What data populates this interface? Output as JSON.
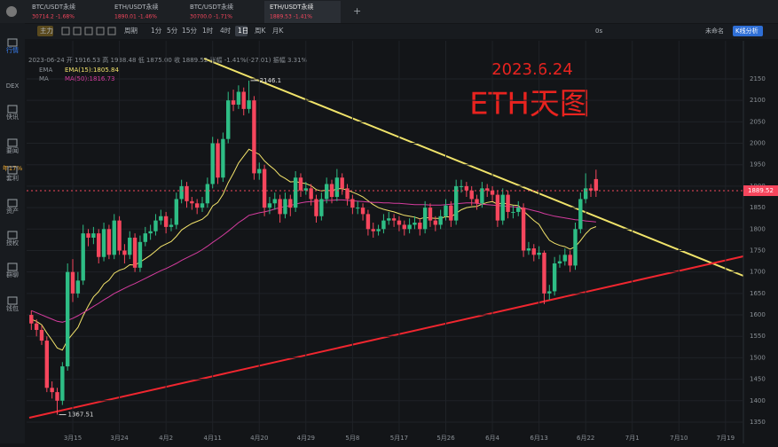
{
  "ui": {
    "tabs": [
      {
        "pair": "BTC/USDT永续",
        "quote": "30714.2 -1.68%"
      },
      {
        "pair": "ETH/USDT永续",
        "quote": "1890.01 -1.46%"
      },
      {
        "pair": "BTC/USDT永续",
        "quote": "30700.0 -1.71%"
      },
      {
        "pair": "ETH/USDT永续",
        "quote": "1889.53 -1.41%"
      }
    ],
    "toolbar": [
      "主力",
      "周期",
      "1分",
      "5分",
      "15分",
      "1时",
      "4时",
      "1日",
      "周K",
      "月K"
    ],
    "right_tools": [
      "0s",
      "未命名",
      "K线分析"
    ],
    "sidebar": [
      "行情",
      "DEX",
      "快讯",
      "要闻",
      "年17%",
      "套利",
      "资产",
      "授权",
      "群聊",
      "钱包"
    ],
    "info": "2023-06-24 开 1916.53 高 1938.48 低 1875.00 收 1889.52 涨幅 -1.41%(-27.01) 振幅 3.31%"
  },
  "chart_data": {
    "type": "candlestick",
    "annotations": [
      "2023.6.24",
      "ETH天图"
    ],
    "categories": [
      null,
      null,
      null,
      null,
      null,
      null,
      null,
      null,
      "3月15",
      null,
      null,
      null,
      null,
      null,
      null,
      null,
      null,
      "3月24",
      null,
      null,
      null,
      null,
      null,
      null,
      null,
      null,
      "4月2",
      null,
      null,
      null,
      null,
      null,
      null,
      null,
      null,
      "4月11",
      null,
      null,
      null,
      null,
      null,
      null,
      null,
      null,
      "4月20",
      null,
      null,
      null,
      null,
      null,
      null,
      null,
      null,
      "4月29",
      null,
      null,
      null,
      null,
      null,
      null,
      null,
      null,
      "5月8",
      null,
      null,
      null,
      null,
      null,
      null,
      null,
      null,
      "5月17",
      null,
      null,
      null,
      null,
      null,
      null,
      null,
      null,
      "5月26",
      null,
      null,
      null,
      null,
      null,
      null,
      null,
      null,
      "6月4",
      null,
      null,
      null,
      null,
      null,
      null,
      null,
      null,
      "6月13",
      null,
      null,
      null,
      null,
      null,
      null,
      null,
      null,
      "6月22",
      null,
      null,
      null,
      null,
      null,
      null,
      null,
      null,
      "7月1",
      null,
      null,
      null,
      null,
      null,
      null,
      null,
      null,
      "7月10",
      null,
      null,
      null,
      null,
      null,
      null,
      null,
      null,
      "7月19",
      null,
      null
    ],
    "candles": {
      "up_color": "#2ebd85",
      "down_color": "#f6465d",
      "open": [
        1600,
        1580,
        1565,
        1540,
        1430,
        1420,
        1400,
        1480,
        1700,
        1650,
        1680,
        1790,
        1780,
        1790,
        1735,
        1800,
        1740,
        1820,
        1750,
        1740,
        1780,
        1710,
        1770,
        1790,
        1795,
        1820,
        1830,
        1805,
        1810,
        1870,
        1900,
        1865,
        1860,
        1850,
        1860,
        1905,
        2000,
        1920,
        2010,
        2100,
        2090,
        2120,
        2080,
        2100,
        1930,
        1940,
        1850,
        1860,
        1870,
        1835,
        1870,
        1850,
        1920,
        1890,
        1895,
        1870,
        1830,
        1870,
        1905,
        1875,
        1920,
        1895,
        1870,
        1850,
        1850,
        1835,
        1800,
        1795,
        1800,
        1820,
        1825,
        1820,
        1810,
        1800,
        1810,
        1815,
        1800,
        1850,
        1820,
        1810,
        1830,
        1855,
        1820,
        1900,
        1900,
        1890,
        1870,
        1860,
        1895,
        1890,
        1880,
        1820,
        1880,
        1840,
        1840,
        1850,
        1750,
        1755,
        1740,
        1745,
        1650,
        1655,
        1720,
        1725,
        1740,
        1715,
        1800,
        1870,
        1895,
        1916.53,
        null,
        null,
        null,
        null,
        null,
        null,
        null,
        null,
        null,
        null,
        null,
        null,
        null,
        null,
        null,
        null,
        null,
        null,
        null,
        null,
        null,
        null,
        null,
        null,
        null,
        null,
        null
      ],
      "high": [
        1610,
        1590,
        1575,
        1550,
        1445,
        1430,
        1490,
        1720,
        1730,
        1700,
        1810,
        1800,
        1805,
        1800,
        1815,
        1810,
        1835,
        1830,
        1765,
        1795,
        1790,
        1785,
        1805,
        1810,
        1835,
        1845,
        1840,
        1825,
        1885,
        1915,
        1910,
        1875,
        1870,
        1875,
        1920,
        2015,
        2010,
        2025,
        2120,
        2125,
        2135,
        2130,
        2146.1,
        2110,
        1955,
        1950,
        1875,
        1885,
        1880,
        1885,
        1880,
        1935,
        1930,
        1910,
        1905,
        1880,
        1885,
        1920,
        1915,
        1940,
        1930,
        1905,
        1880,
        1865,
        1860,
        1845,
        1815,
        1810,
        1835,
        1840,
        1835,
        1830,
        1820,
        1825,
        1830,
        1825,
        1865,
        1860,
        1830,
        1845,
        1870,
        1865,
        1915,
        1915,
        1910,
        1900,
        1880,
        1910,
        1905,
        1900,
        1890,
        1895,
        1890,
        1855,
        1865,
        1860,
        1770,
        1765,
        1760,
        1750,
        1670,
        1735,
        1740,
        1755,
        1750,
        1815,
        1885,
        1930,
        1905,
        1938.48,
        null,
        null,
        null,
        null,
        null,
        null,
        null,
        null,
        null,
        null,
        null,
        null,
        null,
        null,
        null,
        null,
        null,
        null,
        null,
        null,
        null,
        null,
        null,
        null,
        null,
        null,
        null
      ],
      "low": [
        1565,
        1550,
        1530,
        1420,
        1405,
        1367.51,
        1390,
        1470,
        1630,
        1640,
        1670,
        1760,
        1765,
        1720,
        1725,
        1730,
        1730,
        1740,
        1720,
        1730,
        1700,
        1700,
        1760,
        1775,
        1785,
        1810,
        1790,
        1795,
        1800,
        1860,
        1850,
        1845,
        1835,
        1840,
        1850,
        1895,
        1905,
        1910,
        2000,
        2075,
        2080,
        2065,
        2070,
        1915,
        1915,
        1830,
        1835,
        1845,
        1815,
        1825,
        1830,
        1840,
        1875,
        1880,
        1855,
        1815,
        1820,
        1860,
        1860,
        1865,
        1880,
        1855,
        1835,
        1835,
        1820,
        1785,
        1780,
        1785,
        1790,
        1810,
        1805,
        1795,
        1785,
        1790,
        1800,
        1785,
        1790,
        1805,
        1795,
        1800,
        1820,
        1805,
        1810,
        1885,
        1875,
        1855,
        1845,
        1850,
        1875,
        1865,
        1805,
        1810,
        1825,
        1825,
        1830,
        1735,
        1740,
        1725,
        1730,
        1625,
        1635,
        1645,
        1710,
        1715,
        1700,
        1705,
        1790,
        1860,
        1875,
        1875,
        null,
        null,
        null,
        null,
        null,
        null,
        null,
        null,
        null,
        null,
        null,
        null,
        null,
        null,
        null,
        null,
        null,
        null,
        null,
        null,
        null,
        null,
        null,
        null,
        null,
        null,
        null
      ],
      "close": [
        1580,
        1565,
        1540,
        1430,
        1420,
        1400,
        1480,
        1700,
        1650,
        1680,
        1790,
        1780,
        1790,
        1735,
        1800,
        1740,
        1820,
        1750,
        1740,
        1780,
        1710,
        1770,
        1790,
        1795,
        1820,
        1830,
        1805,
        1810,
        1870,
        1900,
        1865,
        1860,
        1850,
        1860,
        1905,
        2000,
        1920,
        2010,
        2100,
        2090,
        2120,
        2080,
        2100,
        1930,
        1940,
        1850,
        1860,
        1870,
        1835,
        1870,
        1850,
        1920,
        1890,
        1895,
        1870,
        1830,
        1870,
        1905,
        1875,
        1920,
        1895,
        1870,
        1850,
        1850,
        1835,
        1800,
        1795,
        1800,
        1820,
        1825,
        1820,
        1810,
        1800,
        1810,
        1815,
        1800,
        1850,
        1820,
        1810,
        1830,
        1855,
        1820,
        1900,
        1900,
        1890,
        1870,
        1860,
        1895,
        1890,
        1880,
        1820,
        1880,
        1840,
        1840,
        1850,
        1750,
        1755,
        1740,
        1745,
        1650,
        1655,
        1720,
        1725,
        1740,
        1715,
        1800,
        1870,
        1895,
        1890,
        1889.52,
        null,
        null,
        null,
        null,
        null,
        null,
        null,
        null,
        null,
        null,
        null,
        null,
        null,
        null,
        null,
        null,
        null,
        null,
        null,
        null,
        null,
        null,
        null,
        null,
        null,
        null,
        null
      ]
    },
    "lines": [
      {
        "name": "EMA",
        "label": "EMA(15):1805.84",
        "color": "#f3e36b",
        "values": [
          1590,
          1585,
          1577,
          1558,
          1541,
          1523,
          1518,
          1541,
          1556,
          1571,
          1598,
          1621,
          1642,
          1654,
          1672,
          1681,
          1697,
          1704,
          1708,
          1717,
          1716,
          1723,
          1731,
          1739,
          1749,
          1759,
          1765,
          1771,
          1783,
          1798,
          1806,
          1813,
          1818,
          1823,
          1833,
          1854,
          1862,
          1881,
          1908,
          1930,
          1954,
          1970,
          1986,
          1980,
          1974,
          1959,
          1948,
          1938,
          1925,
          1918,
          1910,
          1911,
          1908,
          1906,
          1901,
          1892,
          1889,
          1891,
          1889,
          1894,
          1894,
          1891,
          1886,
          1881,
          1875,
          1866,
          1857,
          1850,
          1846,
          1843,
          1840,
          1836,
          1832,
          1830,
          1828,
          1824,
          1827,
          1826,
          1825,
          1825,
          1829,
          1828,
          1837,
          1845,
          1850,
          1852,
          1853,
          1858,
          1862,
          1864,
          1858,
          1861,
          1858,
          1856,
          1855,
          1842,
          1831,
          1820,
          1811,
          1791,
          1774,
          1767,
          1762,
          1759,
          1753,
          1759,
          1773,
          1789,
          1801,
          1805.84,
          null,
          null,
          null,
          null,
          null,
          null,
          null,
          null,
          null,
          null,
          null,
          null,
          null,
          null,
          null,
          null,
          null,
          null,
          null,
          null,
          null,
          null,
          null,
          null,
          null,
          null,
          null
        ]
      },
      {
        "name": "MA",
        "label": "MA(50):1816.73",
        "color": "#d43c9e",
        "values": [
          1610,
          1605,
          1600,
          1595,
          1590,
          1585,
          1583,
          1587,
          1592,
          1598,
          1605,
          1612,
          1620,
          1627,
          1635,
          1642,
          1650,
          1656,
          1662,
          1668,
          1673,
          1679,
          1685,
          1691,
          1697,
          1703,
          1708,
          1714,
          1720,
          1727,
          1733,
          1739,
          1745,
          1752,
          1760,
          1769,
          1777,
          1786,
          1795,
          1805,
          1815,
          1823,
          1832,
          1835,
          1838,
          1840,
          1843,
          1847,
          1850,
          1853,
          1855,
          1858,
          1861,
          1863,
          1864,
          1865,
          1866,
          1867,
          1867,
          1868,
          1868,
          1867,
          1866,
          1865,
          1864,
          1863,
          1862,
          1862,
          1861,
          1861,
          1860,
          1860,
          1859,
          1858,
          1857,
          1857,
          1857,
          1856,
          1856,
          1856,
          1857,
          1858,
          1859,
          1860,
          1861,
          1861,
          1860,
          1858,
          1857,
          1856,
          1855,
          1854,
          1853,
          1852,
          1851,
          1849,
          1846,
          1843,
          1840,
          1836,
          1833,
          1830,
          1828,
          1826,
          1824,
          1822,
          1821,
          1819,
          1818,
          1816.73,
          null,
          null,
          null,
          null,
          null,
          null,
          null,
          null,
          null,
          null,
          null,
          null,
          null,
          null,
          null,
          null,
          null,
          null,
          null,
          null,
          null,
          null,
          null,
          null,
          null,
          null,
          null
        ]
      }
    ],
    "ylim": [
      1320,
      2200
    ],
    "yticks": [
      1350,
      1400,
      1450,
      1500,
      1550,
      1600,
      1650,
      1700,
      1750,
      1800,
      1850,
      1900,
      1950,
      2000,
      2050,
      2100,
      2150
    ],
    "grid": true,
    "high_label_index": 42,
    "low_label_index": 5
  }
}
